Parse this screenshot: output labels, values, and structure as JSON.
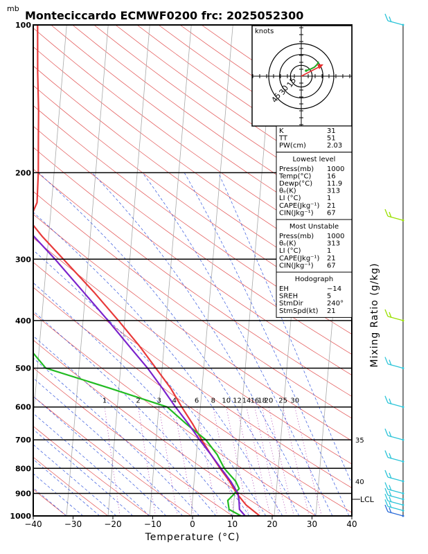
{
  "chart_data": {
    "type": "skew-t log-p sounding",
    "title": "Monteciccardo ECMWF0200  frc: 2025052300",
    "pressure_unit": "mb",
    "xlabel": "Temperature (°C)",
    "right_label": "Mixing Ratio (g/kg)",
    "lcl_label": "LCL",
    "xlim": [
      -40,
      40
    ],
    "pressure_range": [
      1000,
      100
    ],
    "pressure_ticks": [
      100,
      200,
      300,
      400,
      500,
      600,
      700,
      800,
      900,
      1000
    ],
    "pressure_labels": [
      "100",
      "200",
      "300",
      "400",
      "500",
      "600",
      "700",
      "800",
      "900",
      "1000"
    ],
    "temperature_ticks": [
      -40,
      -30,
      -20,
      -10,
      0,
      10,
      20,
      30,
      40
    ],
    "temperature_labels": [
      "−40",
      "−30",
      "−20",
      "−10",
      "0",
      "10",
      "20",
      "30",
      "40"
    ],
    "mixing_ratio_labels": [
      "1",
      "2",
      "3",
      "4",
      "6",
      "8",
      "10",
      "12",
      "14",
      "16",
      "18",
      "20",
      "25",
      "30"
    ],
    "mixing_ratio_values": [
      1,
      2,
      3,
      4,
      6,
      8,
      10,
      12,
      14,
      16,
      18,
      20,
      25,
      30
    ],
    "theta_e_labels": [
      "35",
      "40"
    ],
    "series": [
      {
        "name": "Temperature",
        "color": "#e83a3a",
        "points": [
          [
            1000,
            16.5
          ],
          [
            950,
            13
          ],
          [
            900,
            10.5
          ],
          [
            850,
            8.5
          ],
          [
            800,
            6
          ],
          [
            750,
            3.5
          ],
          [
            700,
            1
          ],
          [
            650,
            -1.5
          ],
          [
            600,
            -4.5
          ],
          [
            550,
            -7.5
          ],
          [
            500,
            -11.5
          ],
          [
            450,
            -16
          ],
          [
            400,
            -21.5
          ],
          [
            350,
            -28
          ],
          [
            300,
            -36
          ],
          [
            270,
            -41.5
          ],
          [
            250,
            -45
          ],
          [
            230,
            -43.5
          ],
          [
            200,
            -43.8
          ],
          [
            170,
            -44.5
          ],
          [
            150,
            -45
          ],
          [
            125,
            -46
          ],
          [
            100,
            -47
          ]
        ]
      },
      {
        "name": "Dewpoint",
        "color": "#22bb22",
        "points": [
          [
            1000,
            12
          ],
          [
            970,
            9
          ],
          [
            930,
            8.5
          ],
          [
            910,
            9.5
          ],
          [
            880,
            11
          ],
          [
            850,
            10
          ],
          [
            800,
            7
          ],
          [
            750,
            5
          ],
          [
            700,
            2
          ],
          [
            650,
            -3
          ],
          [
            600,
            -8
          ],
          [
            550,
            -22
          ],
          [
            500,
            -38
          ],
          [
            450,
            -43
          ],
          [
            400,
            -47
          ],
          [
            350,
            -52
          ],
          [
            300,
            -57
          ],
          [
            250,
            -62
          ],
          [
            200,
            -66
          ],
          [
            150,
            -70
          ],
          [
            125,
            -72
          ],
          [
            100,
            -74
          ]
        ]
      },
      {
        "name": "Parcel",
        "color": "#7a22cc",
        "points": [
          [
            1000,
            13
          ],
          [
            970,
            11.5
          ],
          [
            930,
            11.2
          ],
          [
            900,
            10.8
          ],
          [
            850,
            8.8
          ],
          [
            800,
            6.2
          ],
          [
            750,
            3.5
          ],
          [
            700,
            0.5
          ],
          [
            650,
            -2.5
          ],
          [
            600,
            -6
          ],
          [
            550,
            -9.5
          ],
          [
            500,
            -13.5
          ],
          [
            450,
            -18.5
          ],
          [
            400,
            -24
          ],
          [
            350,
            -30.5
          ],
          [
            300,
            -38
          ],
          [
            250,
            -47.5
          ],
          [
            200,
            -59
          ],
          [
            150,
            -73
          ],
          [
            100,
            -92
          ]
        ]
      }
    ],
    "index_box": {
      "rows": [
        [
          "K",
          "31"
        ],
        [
          "TT",
          "51"
        ],
        [
          "PW(cm)",
          "2.03"
        ]
      ]
    },
    "lowest_level": {
      "header": "Lowest level",
      "rows": [
        [
          "Press(mb)",
          "1000"
        ],
        [
          "Temp(°C)",
          "16"
        ],
        [
          "Dewp(°C)",
          "11.9"
        ],
        [
          "θₑ(K)",
          "313"
        ],
        [
          "LI (°C)",
          "1"
        ],
        [
          "CAPE(Jkg⁻¹)",
          "21"
        ],
        [
          "CIN(Jkg⁻¹)",
          "67"
        ]
      ]
    },
    "most_unstable": {
      "header": "Most Unstable",
      "rows": [
        [
          "Press(mb)",
          "1000"
        ],
        [
          "θₑ(K)",
          "313"
        ],
        [
          "LI (°C)",
          "1"
        ],
        [
          "CAPE(Jkg⁻¹)",
          "21"
        ],
        [
          "CIN(Jkg⁻¹)",
          "67"
        ]
      ]
    },
    "hodograph_box": {
      "header": "Hodograph",
      "rows": [
        [
          "EH",
          "−14"
        ],
        [
          "SREH",
          "5"
        ],
        [
          "StmDir",
          "240°"
        ],
        [
          "StmSpd(kt)",
          "21"
        ]
      ]
    },
    "hodograph": {
      "unit_label": "knots",
      "ring_labels": [
        "15",
        "30",
        "45"
      ],
      "ring_values": [
        15,
        30,
        45
      ]
    },
    "wind_barbs": [
      {
        "pressure": 100,
        "color": "#2bc4d8"
      },
      {
        "pressure": 250,
        "color": "#99e000"
      },
      {
        "pressure": 400,
        "color": "#99e000"
      },
      {
        "pressure": 500,
        "color": "#2bc4d8"
      },
      {
        "pressure": 600,
        "color": "#2bc4d8"
      },
      {
        "pressure": 700,
        "color": "#2bc4d8"
      },
      {
        "pressure": 775,
        "color": "#2bc4d8"
      },
      {
        "pressure": 850,
        "color": "#2bc4d8"
      },
      {
        "pressure": 900,
        "color": "#2bc4d8"
      },
      {
        "pressure": 925,
        "color": "#2bc4d8"
      },
      {
        "pressure": 950,
        "color": "#2bc4d8"
      },
      {
        "pressure": 975,
        "color": "#2bc4d8"
      },
      {
        "pressure": 1000,
        "color": "#2b6bd8"
      }
    ]
  }
}
